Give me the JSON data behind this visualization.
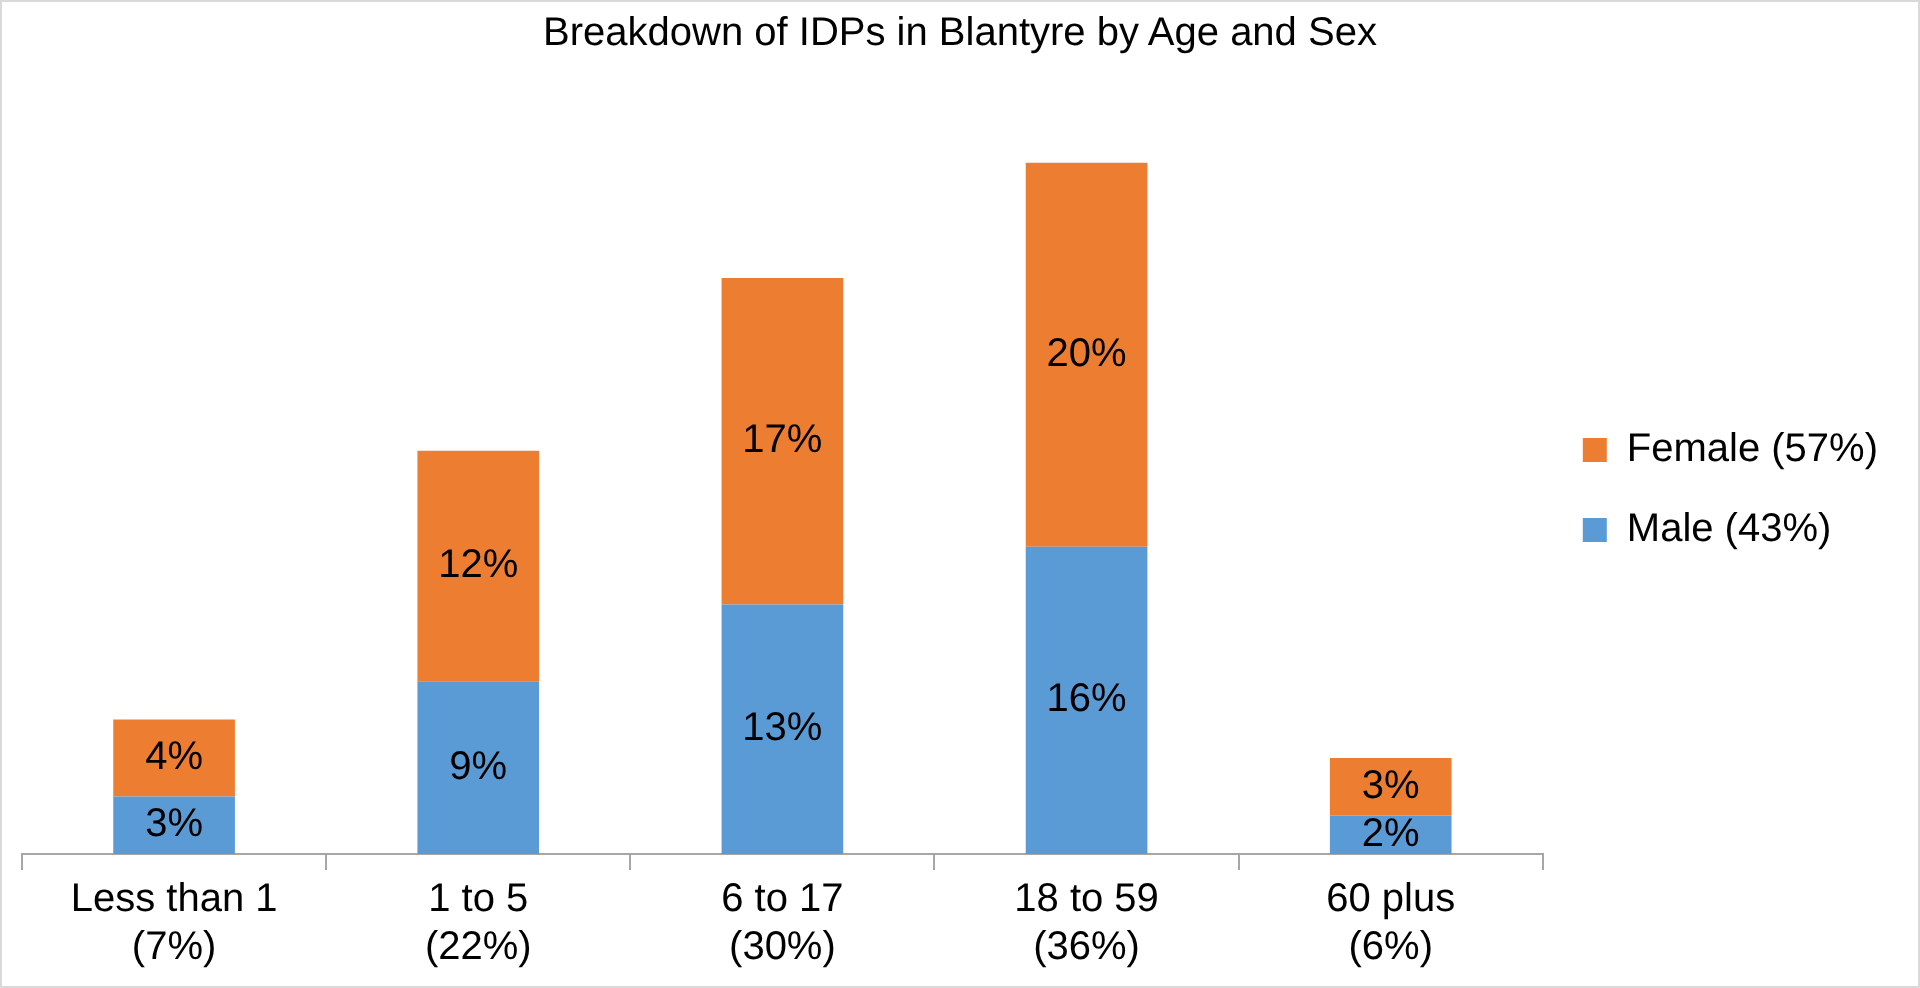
{
  "chart_data": {
    "type": "bar",
    "title": "Breakdown of IDPs in Blantyre by Age and Sex",
    "categories": [
      "Less than 1\n(7%)",
      "1 to 5\n(22%)",
      "6 to 17\n(30%)",
      "18 to 59\n(36%)",
      "60 plus\n(6%)"
    ],
    "stacked": true,
    "legend": "right",
    "grid": false,
    "series": [
      {
        "name": "Male (43%)",
        "color": "#5b9bd5",
        "values": [
          3,
          9,
          13,
          16,
          2
        ],
        "value_labels": [
          "3%",
          "9%",
          "13%",
          "16%",
          "2%"
        ]
      },
      {
        "name": "Female (57%)",
        "color": "#ed7d31",
        "values": [
          4,
          12,
          17,
          20,
          3
        ],
        "value_labels": [
          "4%",
          "12%",
          "17%",
          "20%",
          "3%"
        ]
      }
    ]
  }
}
